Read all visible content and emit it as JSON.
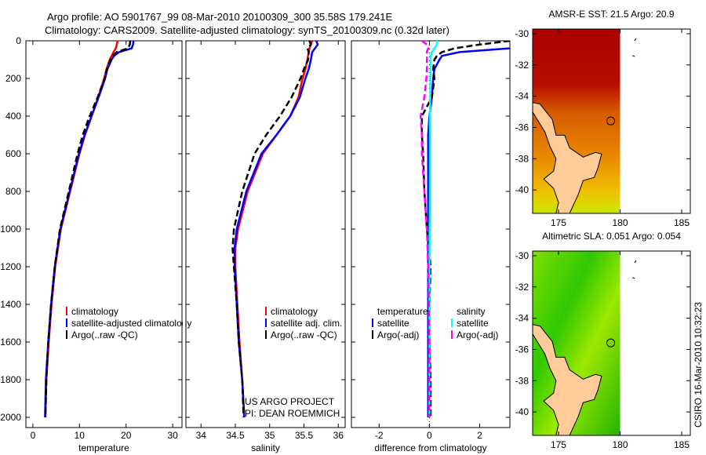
{
  "chart_data": [
    {
      "type": "line",
      "title": [
        "Argo profile: AO 5901767_99 08-Mar-2010 20100309_300 35.58S 179.241E",
        "Climatology: CARS2009. Satellite-adjusted climatology: synTS_20100309.nc (0.32d later)"
      ],
      "xlabel": "temperature",
      "xlim": [
        -1.5,
        32
      ],
      "ylim": [
        2000,
        0
      ],
      "xticks": [
        0,
        10,
        20,
        30
      ],
      "yticks": [
        0,
        200,
        400,
        600,
        800,
        1000,
        1200,
        1400,
        1600,
        1800,
        2000
      ],
      "legend": [
        "climatology",
        "satellite-adjusted climatology",
        "Argo(..raw -QC)"
      ],
      "depth": [
        0,
        20,
        40,
        60,
        80,
        100,
        150,
        200,
        300,
        400,
        500,
        600,
        800,
        1000,
        1200,
        1400,
        1600,
        1800,
        2000
      ],
      "series": [
        {
          "name": "climatology",
          "color": "#ff0000",
          "dash": false,
          "values": [
            18.2,
            18.0,
            17.8,
            17.3,
            16.9,
            16.5,
            15.8,
            15.3,
            14.0,
            12.6,
            11.2,
            10.0,
            8.0,
            6.0,
            4.8,
            4.0,
            3.4,
            2.9,
            2.7
          ]
        },
        {
          "name": "satellite-adjusted climatology",
          "color": "#0000ff",
          "dash": false,
          "values": [
            21.6,
            21.5,
            21.2,
            18.5,
            17.4,
            16.9,
            16.0,
            15.5,
            14.1,
            12.6,
            11.1,
            9.9,
            7.9,
            5.9,
            4.7,
            3.9,
            3.3,
            2.8,
            2.6
          ]
        },
        {
          "name": "Argo(..raw -QC)",
          "color": "#000000",
          "dash": true,
          "values": [
            20.9,
            20.8,
            20.4,
            18.0,
            17.1,
            16.7,
            15.9,
            15.4,
            13.9,
            12.2,
            10.7,
            9.6,
            7.7,
            5.8,
            4.7,
            3.9,
            3.3,
            2.9,
            2.7
          ]
        }
      ]
    },
    {
      "type": "line",
      "xlabel": "salinity",
      "xlim": [
        33.78,
        36.1
      ],
      "ylim": [
        2000,
        0
      ],
      "xticks": [
        34,
        34.5,
        35,
        35.5,
        36
      ],
      "legend": [
        "climatology",
        "satellite adj. clim.",
        "Argo(..raw -QC)"
      ],
      "depth": [
        0,
        20,
        40,
        60,
        100,
        150,
        200,
        300,
        400,
        500,
        600,
        800,
        1000,
        1100,
        1200,
        1400,
        1600,
        1800,
        2000
      ],
      "series": [
        {
          "name": "climatology",
          "color": "#ff0000",
          "dash": false,
          "values": [
            35.62,
            35.6,
            35.58,
            35.57,
            35.55,
            35.52,
            35.48,
            35.42,
            35.3,
            35.1,
            34.9,
            34.68,
            34.54,
            34.5,
            34.5,
            34.53,
            34.56,
            34.6,
            34.63
          ]
        },
        {
          "name": "satellite adj. clim.",
          "color": "#0000ff",
          "dash": false,
          "values": [
            35.68,
            35.7,
            35.66,
            35.62,
            35.6,
            35.57,
            35.52,
            35.44,
            35.3,
            35.1,
            34.88,
            34.66,
            34.52,
            34.49,
            34.49,
            34.52,
            34.55,
            34.6,
            34.63
          ]
        },
        {
          "name": "Argo(..raw -QC)",
          "color": "#000000",
          "dash": true,
          "values": [
            35.58,
            35.6,
            35.55,
            35.57,
            35.56,
            35.5,
            35.45,
            35.32,
            35.15,
            34.95,
            34.78,
            34.6,
            34.48,
            34.46,
            34.48,
            34.52,
            34.55,
            34.6,
            34.62
          ]
        }
      ]
    },
    {
      "type": "line",
      "xlabel": "difference from climatology",
      "xlim": [
        -3.1,
        3.2
      ],
      "ylim": [
        2000,
        0
      ],
      "xticks": [
        -2,
        0,
        2
      ],
      "legend_temperature": {
        "heading": "temperature",
        "items": [
          "satellite",
          "Argo(-adj)"
        ]
      },
      "legend_salinity": {
        "heading": "salinity",
        "items": [
          "satellite",
          "Argo(-adj)"
        ]
      },
      "depth": [
        0,
        20,
        40,
        60,
        80,
        100,
        150,
        200,
        300,
        400,
        500,
        600,
        800,
        1000,
        1200,
        1400,
        1600,
        1800,
        2000
      ],
      "series": [
        {
          "name": "temperature satellite",
          "color": "#0000ff",
          "dash": false,
          "values": [
            3.4,
            3.3,
            3.2,
            1.2,
            0.5,
            0.4,
            0.2,
            0.15,
            0.1,
            0.0,
            -0.05,
            -0.05,
            -0.05,
            -0.05,
            -0.05,
            -0.05,
            -0.05,
            -0.05,
            -0.05
          ]
        },
        {
          "name": "temperature Argo(-adj)",
          "color": "#000000",
          "dash": true,
          "values": [
            3.2,
            2.0,
            1.0,
            0.5,
            0.3,
            0.2,
            0.15,
            0.2,
            0.1,
            -0.3,
            -0.3,
            -0.25,
            -0.2,
            -0.1,
            0.05,
            0.0,
            0.0,
            0.05,
            0.05
          ]
        },
        {
          "name": "salinity satellite",
          "color": "#00ffff",
          "dash": false,
          "values": [
            0.3,
            0.3,
            0.2,
            0.1,
            0.05,
            0.05,
            0.05,
            0.04,
            0.03,
            0.02,
            0.02,
            0.02,
            0.02,
            0.01,
            0.0,
            0.0,
            0.0,
            0.0,
            0.0
          ]
        },
        {
          "name": "salinity Argo(-adj)",
          "color": "#ff00ff",
          "dash": true,
          "values": [
            -0.3,
            -0.1,
            -0.05,
            -0.1,
            -0.1,
            -0.1,
            -0.1,
            -0.12,
            -0.2,
            -0.35,
            -0.3,
            -0.3,
            -0.2,
            -0.1,
            -0.05,
            -0.02,
            0.0,
            0.0,
            0.0
          ]
        }
      ]
    },
    {
      "type": "heatmap",
      "title": "AMSR-E SST: 21.5 Argo: 20.9",
      "xlim": [
        172.9,
        185.7
      ],
      "ylim": [
        -41.5,
        -29.7
      ],
      "xticks": [
        175,
        180,
        185
      ],
      "yticks": [
        -30,
        -32,
        -34,
        -36,
        -38,
        -40
      ],
      "argo_position": {
        "lon": 179.241,
        "lat": -35.58
      }
    },
    {
      "type": "heatmap",
      "title": "Altimetric SLA: 0.051 Argo: 0.054",
      "xlim": [
        172.9,
        185.7
      ],
      "ylim": [
        -41.5,
        -29.7
      ],
      "xticks": [
        175,
        180,
        185
      ],
      "yticks": [
        -30,
        -32,
        -34,
        -36,
        -38,
        -40
      ],
      "argo_position": {
        "lon": 179.241,
        "lat": -35.58
      }
    }
  ],
  "annotations": {
    "project": "US ARGO PROJECT",
    "pi": "PI: DEAN ROEMMICH",
    "stamp": "CSIRO 16-Mar-2010 10:32:23"
  }
}
